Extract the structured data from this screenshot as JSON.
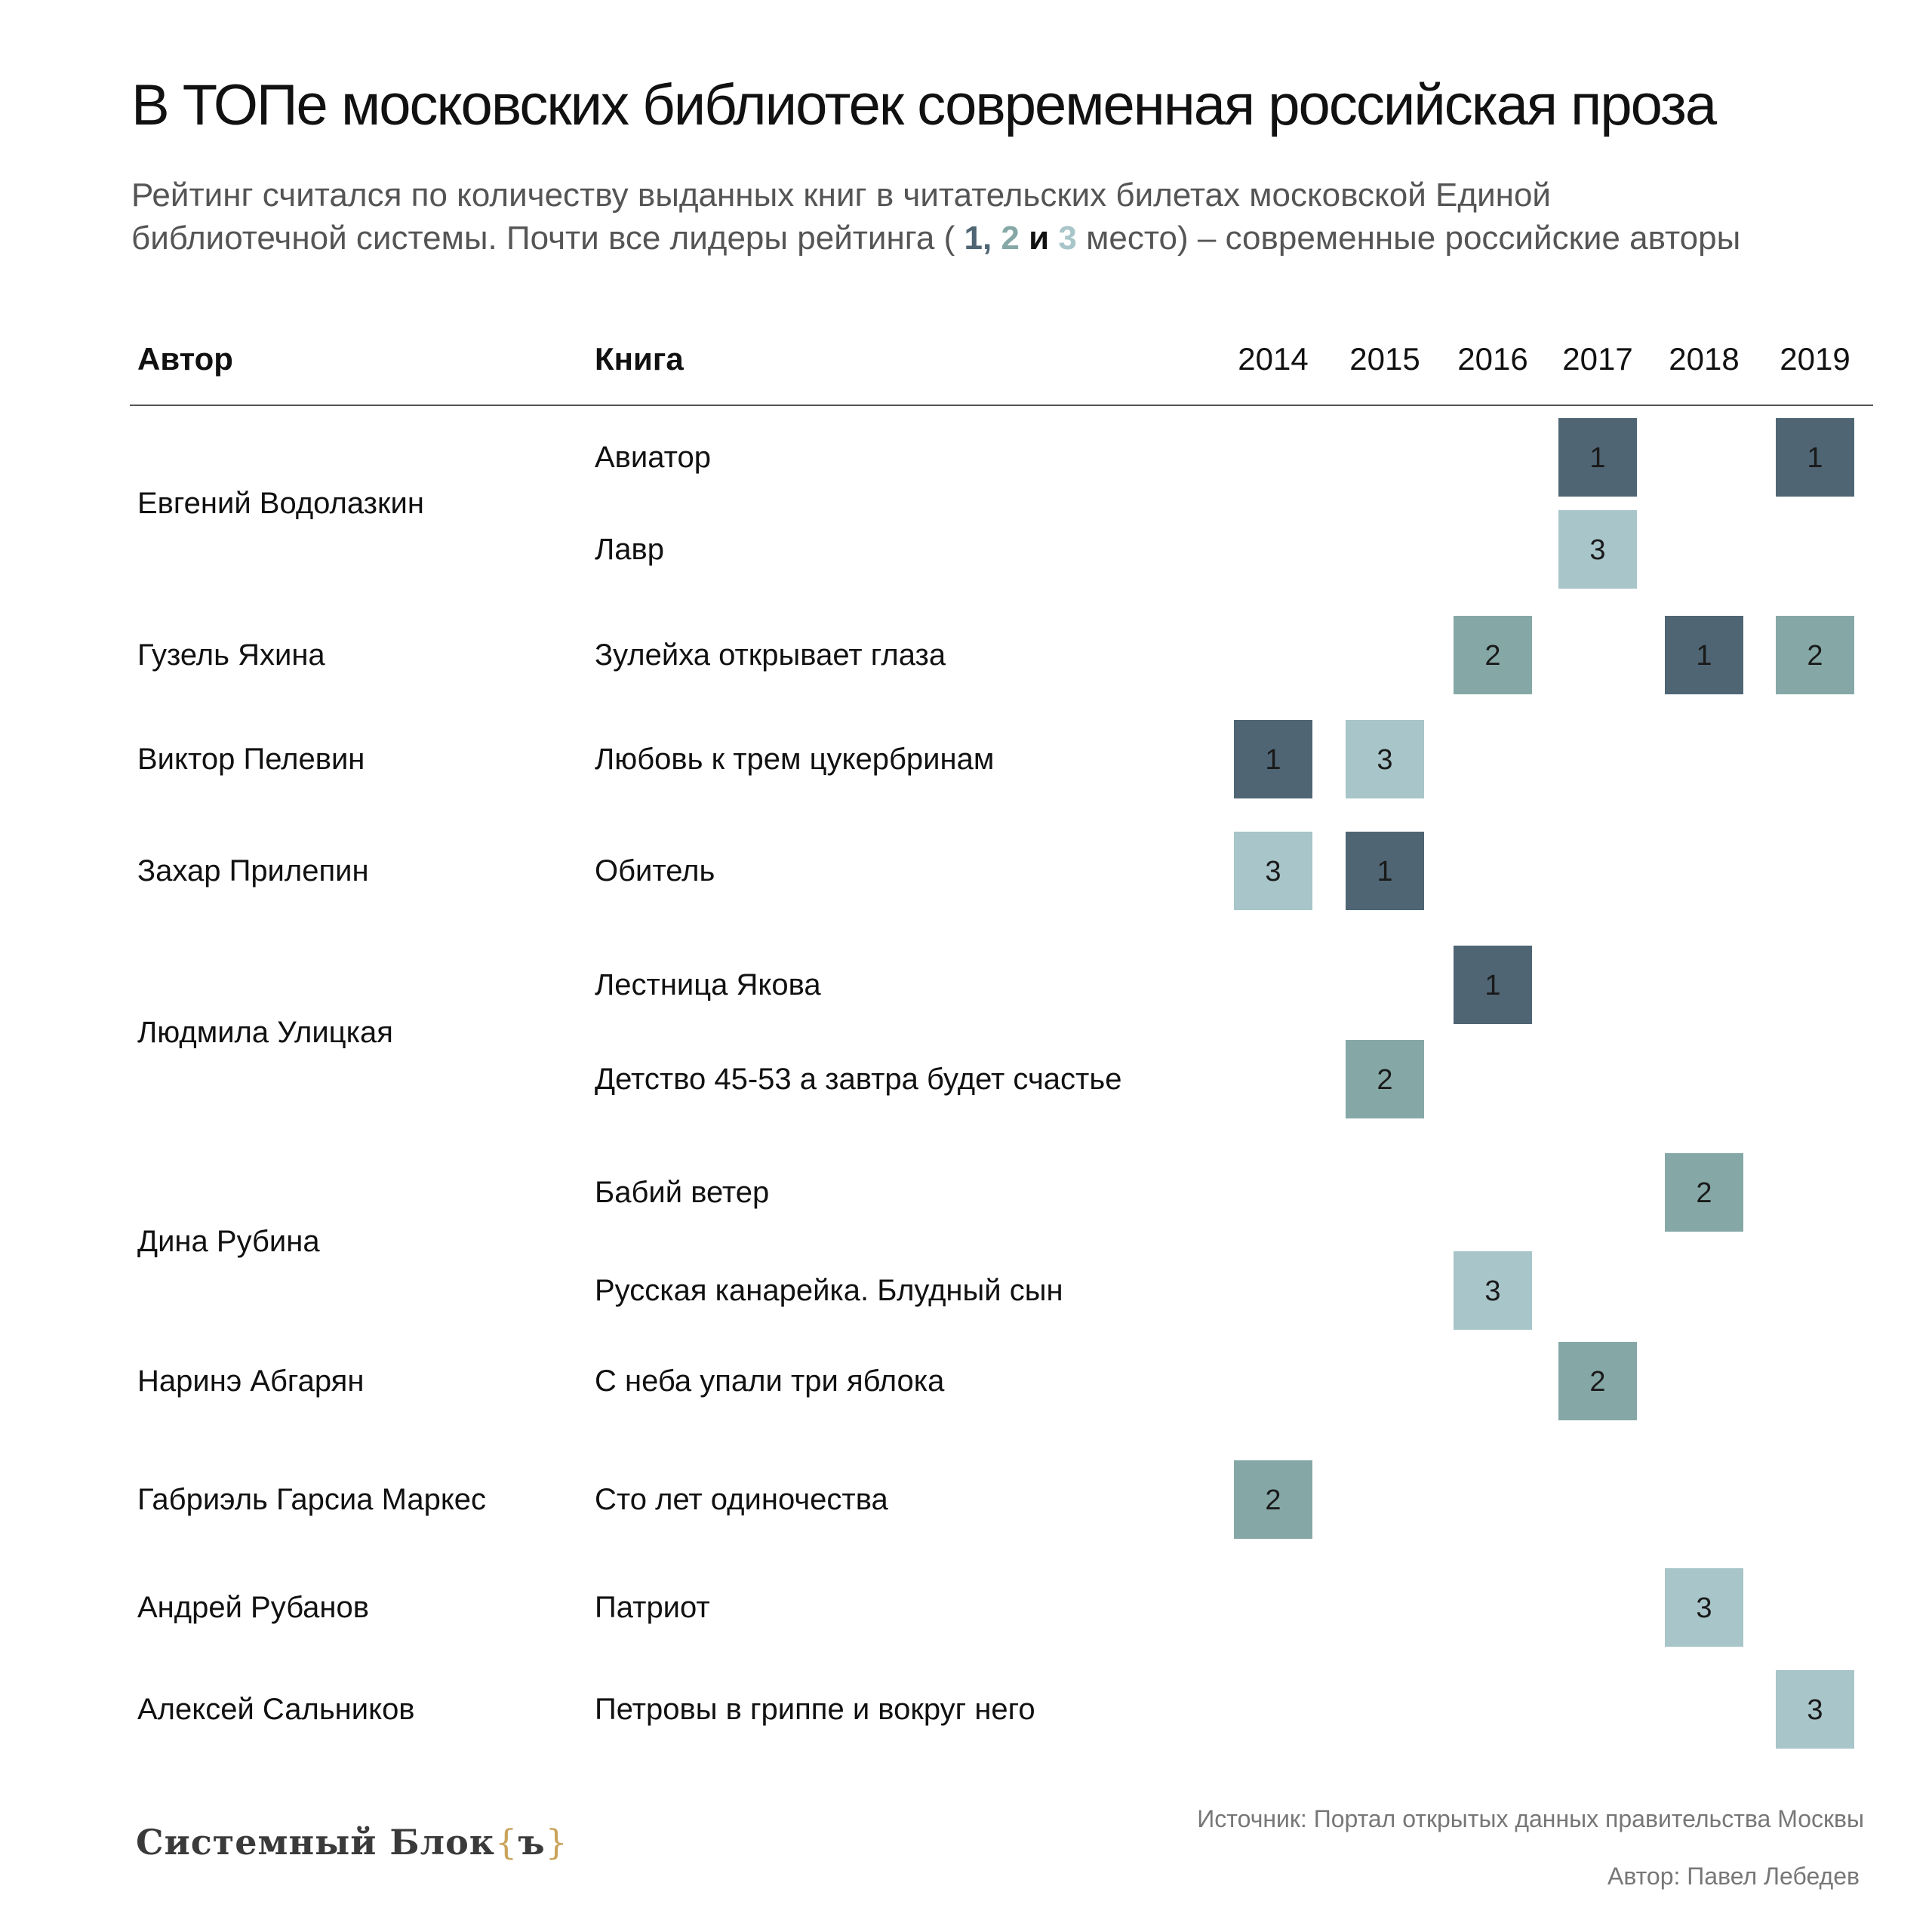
{
  "title": "В ТОПе московских библиотек современная российская проза",
  "subtitle": {
    "line1": "Рейтинг считался по количеству выданных книг в читательских билетах московской Единой",
    "line2_start": "библиотечной системы. Почти все лидеры рейтинга (",
    "n1": "1,",
    "n2": "2",
    "and_word": "и",
    "n3": "3",
    "line2_end": "место) – современные российские авторы"
  },
  "headers": {
    "author": "Автор",
    "book": "Книга"
  },
  "colors": {
    "rank1": "#4f6574",
    "rank2": "#85a8a7",
    "rank3": "#a8c5c9",
    "text": "#1a1a1a",
    "rule": "#555555"
  },
  "chart_data": {
    "type": "table",
    "years": [
      "2014",
      "2015",
      "2016",
      "2017",
      "2018",
      "2019"
    ],
    "authors": [
      {
        "name": "Евгений Водолазкин",
        "books": [
          {
            "title": "Авиатор",
            "ranks": {
              "2017": 1,
              "2019": 1
            }
          },
          {
            "title": "Лавр",
            "ranks": {
              "2017": 3
            }
          }
        ]
      },
      {
        "name": "Гузель Яхина",
        "books": [
          {
            "title": "Зулейха открывает глаза",
            "ranks": {
              "2016": 2,
              "2018": 1,
              "2019": 2
            }
          }
        ]
      },
      {
        "name": "Виктор Пелевин",
        "books": [
          {
            "title": "Любовь к трем цукербринам",
            "ranks": {
              "2014": 1,
              "2015": 3
            }
          }
        ]
      },
      {
        "name": "Захар Прилепин",
        "books": [
          {
            "title": "Обитель",
            "ranks": {
              "2014": 3,
              "2015": 1
            }
          }
        ]
      },
      {
        "name": "Людмила Улицкая",
        "books": [
          {
            "title": "Лестница Якова",
            "ranks": {
              "2016": 1
            }
          },
          {
            "title": "Детство 45-53 а завтра будет счастье",
            "ranks": {
              "2015": 2
            }
          }
        ]
      },
      {
        "name": "Дина Рубина",
        "books": [
          {
            "title": "Бабий ветер",
            "ranks": {
              "2018": 2
            }
          },
          {
            "title": "Русская канарейка. Блудный сын",
            "ranks": {
              "2016": 3
            }
          }
        ]
      },
      {
        "name": "Наринэ Абгарян",
        "books": [
          {
            "title": "С неба упали три яблока",
            "ranks": {
              "2017": 2
            }
          }
        ]
      },
      {
        "name": "Габриэль Гарсиа Маркес",
        "books": [
          {
            "title": "Сто лет одиночества",
            "ranks": {
              "2014": 2
            }
          }
        ]
      },
      {
        "name": "Андрей Рубанов",
        "books": [
          {
            "title": "Патриот",
            "ranks": {
              "2018": 3
            }
          }
        ]
      },
      {
        "name": "Алексей Сальников",
        "books": [
          {
            "title": "Петровы в гриппе и вокруг него",
            "ranks": {
              "2019": 3
            }
          }
        ]
      }
    ]
  },
  "source": "Источник: Портал открытых данных правительства Москвы",
  "byline": "Автор: Павел Лебедев",
  "logo": {
    "text": "Системный Блок",
    "brace_open": "{",
    "brace_letter": "ъ",
    "brace_close": "}"
  }
}
